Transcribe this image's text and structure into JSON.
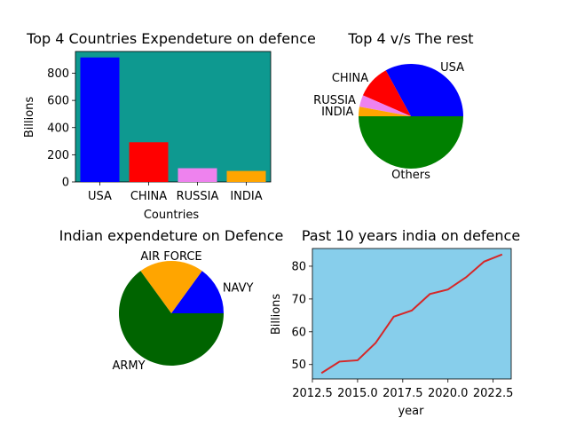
{
  "chart_data": [
    {
      "type": "bar",
      "title": "Top 4 Countries Expendeture on defence",
      "xlabel": "Countries",
      "ylabel": "Billions",
      "categories": [
        "USA",
        "CHINA",
        "RUSSIA",
        "INDIA"
      ],
      "values": [
        916,
        292,
        101,
        81
      ],
      "colors": [
        "#0000ff",
        "#ff0000",
        "#ee82ee",
        "#ffa500"
      ],
      "background": "#0e9990",
      "ylim": [
        0,
        960
      ],
      "yticks": [
        0,
        200,
        400,
        600,
        800
      ],
      "ytick_labels": [
        "0",
        "200",
        "400",
        "600",
        "800"
      ]
    },
    {
      "type": "pie",
      "title": "Top 4 v/s The rest",
      "labels": [
        "USA",
        "CHINA",
        "RUSSIA",
        "INDIA",
        "Others"
      ],
      "values": [
        916,
        292,
        101,
        81,
        1390
      ],
      "colors": [
        "#0000ff",
        "#ff0000",
        "#ee82ee",
        "#ffa500",
        "#008000"
      ]
    },
    {
      "type": "pie",
      "title": "Indian expendeture on Defence",
      "labels": [
        "NAVY",
        "AIR FORCE",
        "ARMY"
      ],
      "values": [
        15,
        20,
        65
      ],
      "colors": [
        "#0000ff",
        "#ffa500",
        "#006400"
      ]
    },
    {
      "type": "line",
      "title": "Past 10 years india on defence",
      "xlabel": "year",
      "ylabel": "Billions",
      "background": "#87ceeb",
      "line_color": "#d62728",
      "x": [
        2013,
        2014,
        2015,
        2016,
        2017,
        2018,
        2019,
        2020,
        2021,
        2022,
        2023
      ],
      "values": [
        47.4,
        50.9,
        51.3,
        56.6,
        64.6,
        66.5,
        71.5,
        72.9,
        76.6,
        81.4,
        83.6
      ],
      "xlim": [
        2012.5,
        2023.5
      ],
      "ylim": [
        45.6,
        85.4
      ],
      "xticks": [
        2012.5,
        2015.0,
        2017.5,
        2020.0,
        2022.5
      ],
      "xtick_labels": [
        "2012.5",
        "2015.0",
        "2017.5",
        "2020.0",
        "2022.5"
      ],
      "yticks": [
        50,
        60,
        70,
        80
      ],
      "ytick_labels": [
        "50",
        "60",
        "70",
        "80"
      ]
    }
  ]
}
